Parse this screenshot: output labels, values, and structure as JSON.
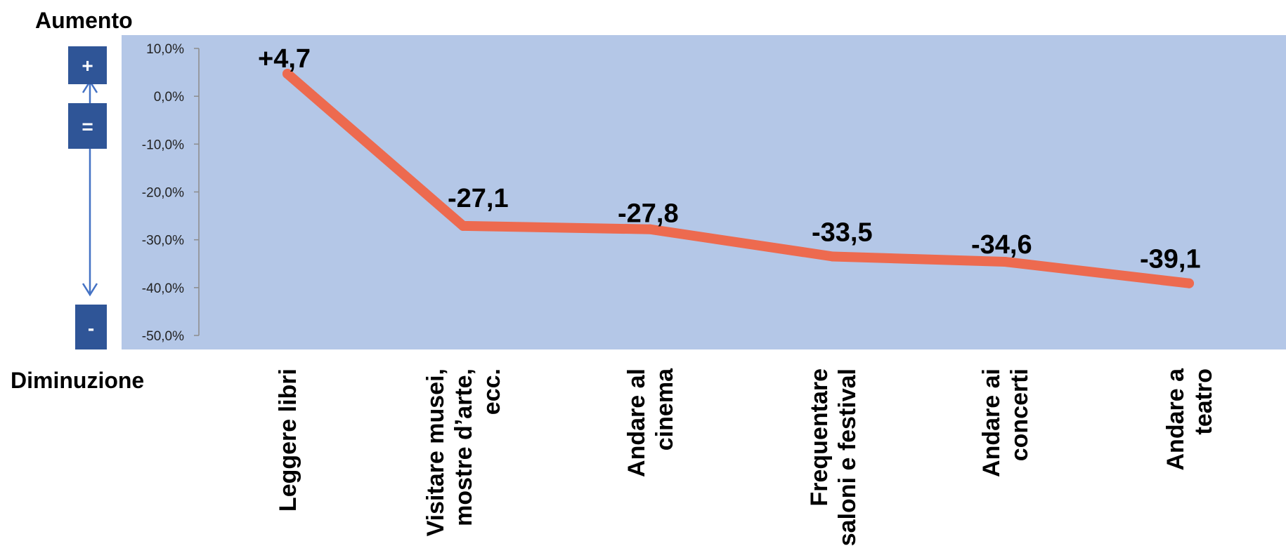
{
  "labels": {
    "top": "Aumento",
    "bottom": "Diminuzione",
    "plus": "+",
    "equal": "=",
    "minus": "-"
  },
  "colors": {
    "plot_bg": "#b4c7e7",
    "line": "#ed6a4f",
    "indicator_box": "#2f5597",
    "indicator_arrow": "#4472c4"
  },
  "chart_data": {
    "type": "line",
    "categories": [
      [
        "Leggere libri"
      ],
      [
        "Visitare musei,",
        "mostre d’arte,",
        "ecc."
      ],
      [
        "Andare al",
        "cinema"
      ],
      [
        "Frequentare",
        "saloni e festival"
      ],
      [
        "Andare ai",
        "concerti"
      ],
      [
        "Andare a",
        "teatro"
      ]
    ],
    "series": [
      {
        "values": [
          4.7,
          -27.1,
          -27.8,
          -33.5,
          -34.6,
          -39.1
        ]
      }
    ],
    "data_labels": [
      "+4,7",
      "-27,1",
      "-27,8",
      "-33,5",
      "-34,6",
      "-39,1"
    ],
    "yticks": [
      10,
      0,
      -10,
      -20,
      -30,
      -40,
      -50
    ],
    "ytick_labels": [
      "10,0%",
      "0,0%",
      "-10,0%",
      "-20,0%",
      "-30,0%",
      "-40,0%",
      "-50,0%"
    ],
    "ylim": [
      -50,
      10
    ],
    "grid": false
  }
}
